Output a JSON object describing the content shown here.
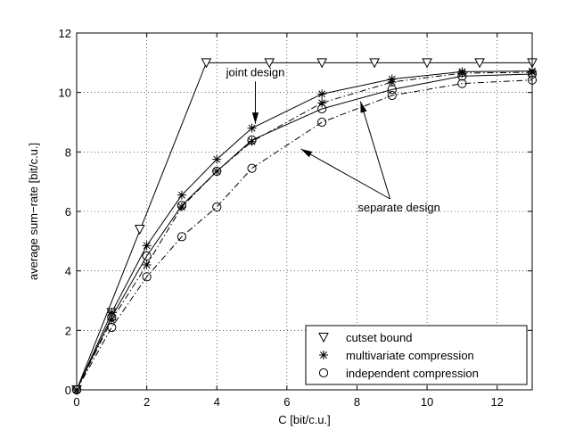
{
  "chart_data": {
    "type": "line",
    "title": "",
    "xlabel": "C [bit/c.u.]",
    "ylabel": "average sum−rate [bit/c.u.]",
    "xlim": [
      0,
      13
    ],
    "ylim": [
      0,
      12
    ],
    "x_ticks": [
      "0",
      "2",
      "4",
      "6",
      "8",
      "10",
      "12"
    ],
    "y_ticks": [
      "0",
      "2",
      "4",
      "6",
      "8",
      "10",
      "12"
    ],
    "grid": true,
    "legend_position": "bottom-right",
    "legend": [
      {
        "label": "cutset bound",
        "marker": "triangle-down"
      },
      {
        "label": "multivariate compression",
        "marker": "star"
      },
      {
        "label": "independent compression",
        "marker": "circle"
      }
    ],
    "series": [
      {
        "group": "cutset",
        "line": "solid",
        "marker": "triangle-down",
        "x": [
          0,
          3.7,
          13
        ],
        "y": [
          0,
          11,
          11
        ],
        "marker_x": [
          0,
          1.0,
          1.8,
          3.7,
          5.5,
          7.0,
          8.5,
          10.0,
          11.5,
          13.0
        ],
        "marker_y": [
          0,
          2.6,
          5.4,
          11,
          11,
          11,
          11,
          11,
          11,
          11
        ]
      },
      {
        "group": "joint",
        "line": "solid",
        "marker": "star",
        "x": [
          0,
          1,
          2,
          3,
          4,
          5,
          7,
          9,
          11,
          13
        ],
        "y": [
          0,
          2.6,
          4.85,
          6.55,
          7.75,
          8.8,
          9.95,
          10.45,
          10.7,
          10.72
        ]
      },
      {
        "group": "joint",
        "line": "solid",
        "marker": "circle",
        "x": [
          0,
          1,
          2,
          3,
          4,
          5,
          7,
          9,
          11,
          13
        ],
        "y": [
          0,
          2.45,
          4.5,
          6.2,
          7.35,
          8.4,
          9.45,
          10.1,
          10.55,
          10.62
        ]
      },
      {
        "group": "separate",
        "line": "dashdot",
        "marker": "star",
        "x": [
          0,
          1,
          2,
          3,
          4,
          5,
          7,
          9,
          11,
          13
        ],
        "y": [
          0,
          2.35,
          4.2,
          6.15,
          7.35,
          8.35,
          9.65,
          10.35,
          10.65,
          10.68
        ]
      },
      {
        "group": "separate",
        "line": "dashdot",
        "marker": "circle",
        "x": [
          0,
          1,
          2,
          3,
          4,
          5,
          7,
          9,
          11,
          13
        ],
        "y": [
          0,
          2.1,
          3.8,
          5.15,
          6.15,
          7.45,
          9.0,
          9.9,
          10.3,
          10.42
        ]
      }
    ],
    "annotations": [
      {
        "text": "joint design",
        "x": 5.1,
        "y": 10.55,
        "arrow_to_x": 5.1,
        "arrow_to_y": 8.95
      },
      {
        "text": "separate design",
        "x": 9.2,
        "y": 6.0,
        "arrows_to": [
          [
            6.4,
            8.1
          ],
          [
            8.1,
            9.7
          ]
        ]
      }
    ]
  }
}
